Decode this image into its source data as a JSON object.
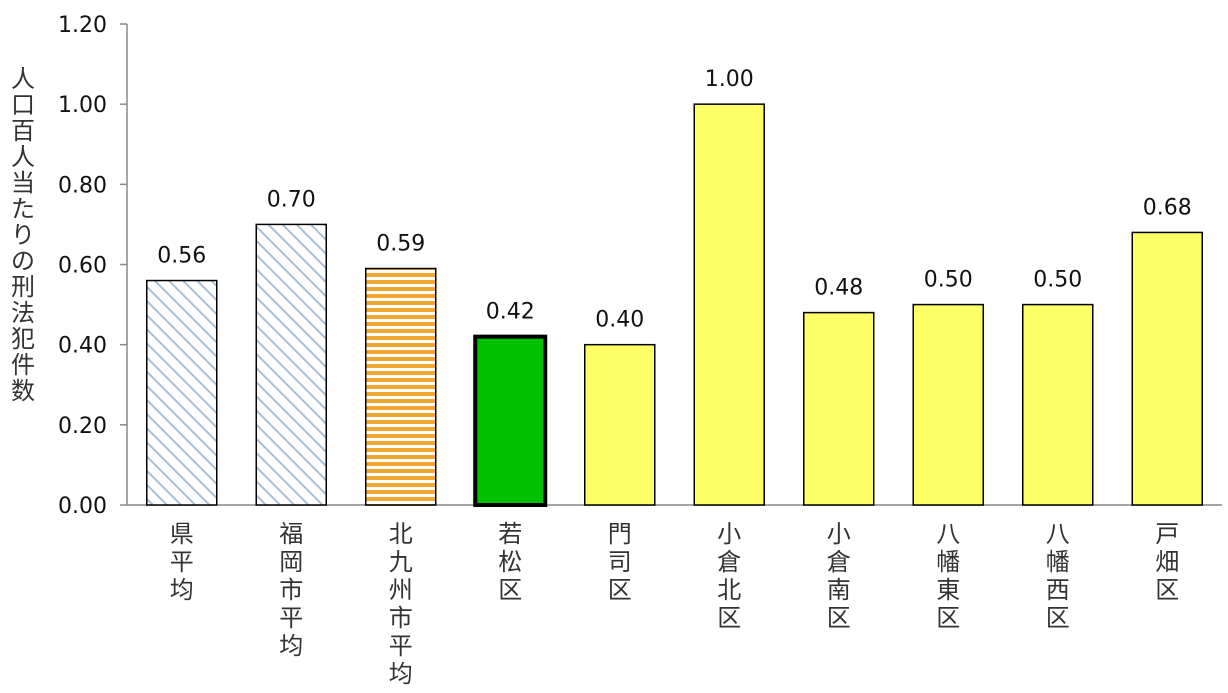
{
  "chart_data": {
    "type": "bar",
    "ylabel": "人口百人当たりの刑法犯件数",
    "ylim": [
      0,
      1.2
    ],
    "yticks": [
      "0.00",
      "0.20",
      "0.40",
      "0.60",
      "0.80",
      "1.00",
      "1.20"
    ],
    "categories": [
      "県平均",
      "福岡市平均",
      "北九州市平均",
      "若松区",
      "門司区",
      "小倉北区",
      "小倉南区",
      "八幡東区",
      "八幡西区",
      "戸畑区"
    ],
    "values": [
      0.56,
      0.7,
      0.59,
      0.42,
      0.4,
      1.0,
      0.48,
      0.5,
      0.5,
      0.68
    ],
    "data_labels": [
      "0.56",
      "0.70",
      "0.59",
      "0.42",
      "0.40",
      "1.00",
      "0.48",
      "0.50",
      "0.50",
      "0.68"
    ],
    "bar_styles": [
      "blue-diagonal-hatch",
      "blue-diagonal-hatch",
      "orange-horizontal-stripes",
      "green-highlight",
      "yellow",
      "yellow",
      "yellow",
      "yellow",
      "yellow",
      "yellow"
    ],
    "colors": {
      "hatch": "#a9bfd4",
      "stripe": "#f0a830",
      "highlight": "#00c000",
      "yellow": "#ffff66",
      "outline": "#000000"
    },
    "grid": false
  }
}
